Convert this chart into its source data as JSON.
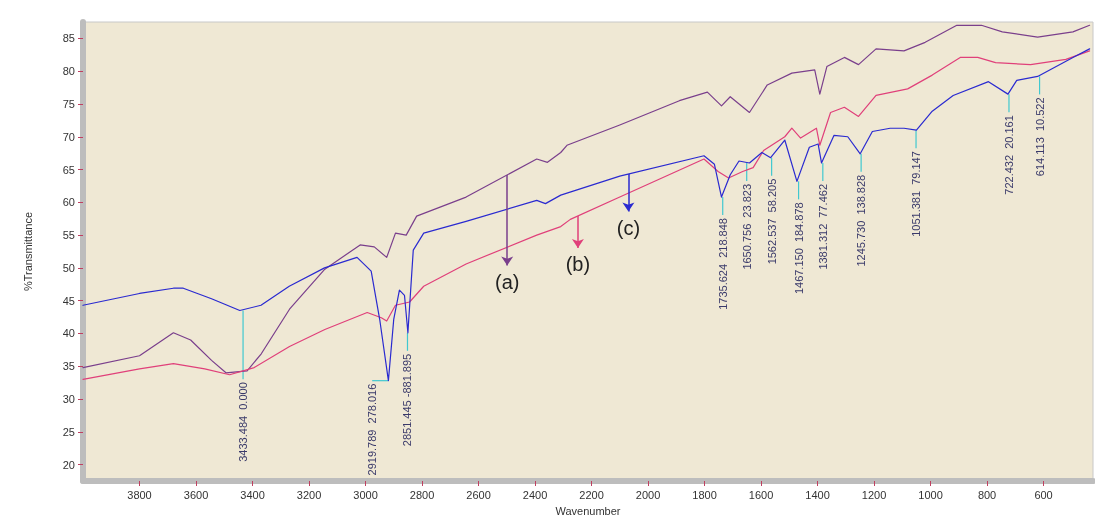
{
  "chart_data": {
    "type": "line",
    "xlabel": "Wavenumber",
    "ylabel": "%Transmittance",
    "xlim": [
      4000,
      425
    ],
    "ylim": [
      17.5,
      87.5
    ],
    "xticks": [
      3800,
      3600,
      3400,
      3200,
      3000,
      2800,
      2600,
      2400,
      2200,
      2000,
      1800,
      1600,
      1400,
      1200,
      1000,
      800,
      600
    ],
    "yticks": [
      20,
      25,
      30,
      35,
      40,
      45,
      50,
      55,
      60,
      65,
      70,
      75,
      80,
      85
    ],
    "grid": false,
    "legend": "center",
    "marker": "none",
    "line_style": "solid",
    "series": [
      {
        "name": "(a)",
        "color": "#7a3f8c",
        "x": [
          4000,
          3800,
          3680,
          3619,
          3545,
          3494,
          3419,
          3369,
          3269,
          3144,
          3019,
          2969,
          2925,
          2894,
          2856,
          2819,
          2644,
          2394,
          2356,
          2309,
          2287,
          2100,
          1889,
          1790,
          1740,
          1709,
          1641,
          1578,
          1491,
          1410,
          1392,
          1367,
          1305,
          1255,
          1193,
          1094,
          1019,
          907,
          820,
          746,
          621,
          496,
          437
        ],
        "values": [
          34.8,
          36.6,
          40.1,
          39.0,
          35.9,
          34.0,
          34.3,
          36.9,
          43.7,
          49.8,
          53.5,
          53.2,
          51.6,
          55.3,
          55.0,
          57.9,
          60.8,
          66.6,
          66.1,
          67.6,
          68.7,
          71.8,
          75.5,
          76.8,
          74.7,
          76.1,
          73.7,
          77.9,
          79.7,
          80.2,
          76.5,
          80.7,
          82.1,
          81.0,
          83.4,
          83.1,
          84.4,
          87.0,
          87.0,
          86.0,
          85.2,
          86.0,
          87.0
        ]
      },
      {
        "name": "(b)",
        "color": "#e0407a",
        "x": [
          4000,
          3800,
          3680,
          3569,
          3481,
          3394,
          3269,
          3144,
          2994,
          2944,
          2925,
          2894,
          2844,
          2794,
          2644,
          2394,
          2309,
          2275,
          2100,
          1802,
          1752,
          1715,
          1665,
          1628,
          1591,
          1516,
          1491,
          1460,
          1404,
          1392,
          1354,
          1305,
          1255,
          1193,
          1081,
          994,
          895,
          833,
          770,
          646,
          521,
          437
        ],
        "values": [
          33.0,
          34.6,
          35.4,
          34.6,
          33.7,
          34.8,
          38.0,
          40.6,
          43.2,
          42.4,
          41.9,
          44.3,
          44.8,
          47.2,
          50.6,
          55.0,
          56.3,
          57.4,
          60.8,
          66.6,
          64.7,
          63.7,
          64.7,
          65.3,
          67.9,
          70.0,
          71.3,
          69.8,
          71.3,
          68.7,
          73.7,
          74.5,
          73.1,
          76.3,
          77.3,
          79.4,
          82.1,
          82.1,
          81.3,
          81.0,
          81.8,
          83.1
        ]
      },
      {
        "name": "(c)",
        "color": "#2a2ad0",
        "x": [
          4000,
          3800,
          3680,
          3645,
          3545,
          3445,
          3370,
          3270,
          3145,
          3030,
          2980,
          2950,
          2919,
          2900,
          2880,
          2862,
          2850,
          2831,
          2794,
          2644,
          2394,
          2363,
          2309,
          2100,
          1802,
          1765,
          1740,
          1709,
          1678,
          1641,
          1597,
          1566,
          1516,
          1473,
          1429,
          1398,
          1386,
          1342,
          1293,
          1249,
          1206,
          1143,
          1094,
          1050,
          994,
          920,
          795,
          726,
          695,
          621,
          496,
          437
        ],
        "values": [
          44.3,
          46.1,
          46.9,
          46.9,
          45.3,
          43.5,
          44.3,
          47.2,
          50.0,
          51.6,
          49.5,
          42.2,
          32.8,
          42.2,
          46.6,
          45.8,
          40.1,
          52.7,
          55.3,
          57.1,
          60.3,
          59.8,
          61.1,
          64.0,
          67.1,
          65.8,
          60.8,
          64.2,
          66.3,
          66.0,
          67.6,
          66.8,
          69.5,
          63.2,
          68.4,
          68.9,
          66.0,
          70.2,
          70.0,
          67.4,
          70.8,
          71.3,
          71.3,
          71.0,
          73.9,
          76.3,
          78.4,
          76.5,
          78.6,
          79.2,
          82.1,
          83.4
        ]
      }
    ],
    "annotations": [
      {
        "text": "3433.484  0.000",
        "x": 3433.484,
        "y": 43.5
      },
      {
        "text": "2919.789  278.016",
        "x": 2919.789,
        "y": 32.8
      },
      {
        "text": "2851.445 -881.895",
        "x": 2851.445,
        "y": 40.1
      },
      {
        "text": "1735.624  218.848",
        "x": 1735.624,
        "y": 60.8
      },
      {
        "text": "1650.756  23.823",
        "x": 1650.756,
        "y": 66.0
      },
      {
        "text": "1562.537  58.205",
        "x": 1562.537,
        "y": 66.8
      },
      {
        "text": "1467.150  184.878",
        "x": 1467.15,
        "y": 63.2
      },
      {
        "text": "1381.312  77.462",
        "x": 1381.312,
        "y": 66.0
      },
      {
        "text": "1245.730  138.828",
        "x": 1245.73,
        "y": 67.4
      },
      {
        "text": "1051.381  79.147",
        "x": 1051.381,
        "y": 71.0
      },
      {
        "text": "722.432  20.161",
        "x": 722.432,
        "y": 76.5
      },
      {
        "text": "614.113  10.522",
        "x": 614.113,
        "y": 79.2
      }
    ]
  }
}
